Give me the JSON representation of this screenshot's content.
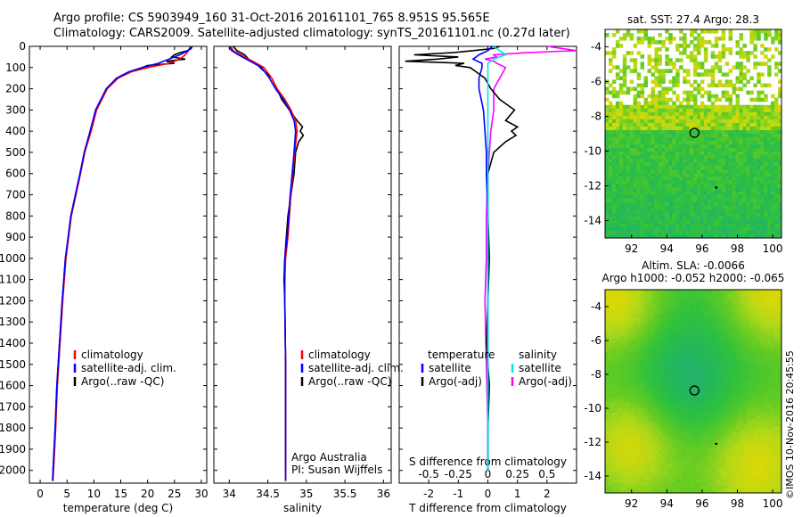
{
  "header": {
    "line1": "Argo profile: CS 5903949_160 31-Oct-2016 20161101_765 8.951S 95.565E",
    "line2": "Climatology: CARS2009. Satellite-adjusted climatology: synTS_20161101.nc (0.27d later)"
  },
  "credit": "©IMOS 10-Nov-2016 20:45:55",
  "colors": {
    "climatology": "#ff0000",
    "satellite": "#0000ff",
    "argo": "#000000",
    "sal_sat": "#00e5e5",
    "sal_argo": "#ff00ff"
  },
  "chart_data": [
    {
      "id": "temperature",
      "type": "line",
      "xlabel": "temperature (deg C)",
      "ylabel": "",
      "xlim": [
        -2,
        31
      ],
      "ylim": [
        2060,
        0
      ],
      "xticks": [
        0,
        5,
        10,
        15,
        20,
        25,
        30
      ],
      "yticks": [
        0,
        100,
        200,
        300,
        400,
        500,
        600,
        700,
        800,
        900,
        1000,
        1100,
        1200,
        1300,
        1400,
        1500,
        1600,
        1700,
        1800,
        1900,
        2000
      ],
      "legend": [
        "climatology",
        "satellite-adj. clim.",
        "Argo(..raw -QC)"
      ],
      "series": [
        {
          "name": "climatology",
          "depth": [
            0,
            20,
            40,
            60,
            80,
            100,
            120,
            150,
            200,
            250,
            300,
            400,
            500,
            600,
            800,
            1000,
            1200,
            1400,
            1600,
            1800,
            2000,
            2050
          ],
          "values": [
            28,
            27.6,
            27,
            26,
            24,
            20,
            17,
            14.5,
            12.5,
            11.5,
            10.5,
            9.5,
            8.3,
            7.5,
            5.8,
            4.8,
            4.2,
            3.7,
            3.2,
            2.9,
            2.5,
            2.4
          ]
        },
        {
          "name": "satellite-adj. clim.",
          "depth": [
            0,
            20,
            40,
            60,
            80,
            100,
            120,
            150,
            200,
            250,
            300,
            400,
            500,
            600,
            800,
            1000,
            1200,
            1400,
            1600,
            1800,
            2000,
            2050
          ],
          "values": [
            28.2,
            27.5,
            26,
            24,
            22,
            19,
            16.5,
            14.2,
            12.3,
            11.3,
            10.3,
            9.3,
            8.2,
            7.4,
            5.7,
            4.7,
            4.1,
            3.6,
            3.1,
            2.8,
            2.4,
            2.3
          ]
        },
        {
          "name": "Argo(..raw -QC)",
          "depth": [
            0,
            10,
            20,
            30,
            40,
            50,
            60,
            70,
            80,
            90,
            100,
            120,
            150,
            200,
            250,
            300,
            400,
            500,
            600,
            800,
            1000,
            1200,
            1400,
            1600,
            1800,
            2000
          ],
          "values": [
            28.3,
            28.1,
            27.5,
            26,
            25,
            24.5,
            27,
            23.5,
            25,
            20,
            19,
            16.8,
            14.5,
            12.4,
            11.4,
            10.4,
            9.4,
            8.3,
            7.5,
            5.8,
            4.7,
            4.1,
            3.6,
            3.1,
            2.8,
            2.4
          ]
        }
      ]
    },
    {
      "id": "salinity",
      "type": "line",
      "xlabel": "salinity",
      "ylabel": "",
      "xlim": [
        33.8,
        36.1
      ],
      "ylim": [
        2060,
        0
      ],
      "xticks": [
        34,
        34.5,
        35,
        35.5,
        36
      ],
      "legend": [
        "climatology",
        "satellite-adj. clim.",
        "Argo(..raw -QC)"
      ],
      "annotation": [
        "Argo Australia",
        "PI: Susan Wijffels"
      ],
      "series": [
        {
          "name": "climatology",
          "depth": [
            0,
            20,
            40,
            60,
            80,
            100,
            150,
            200,
            250,
            300,
            350,
            400,
            500,
            700,
            900,
            1000,
            1100,
            1200,
            1500,
            1800,
            2000,
            2050
          ],
          "values": [
            34.02,
            34.05,
            34.15,
            34.25,
            34.35,
            34.45,
            34.55,
            34.62,
            34.72,
            34.8,
            34.86,
            34.88,
            34.85,
            34.8,
            34.76,
            34.73,
            34.72,
            34.72,
            34.73,
            34.73,
            34.73,
            34.73
          ]
        },
        {
          "name": "satellite-adj. clim.",
          "depth": [
            0,
            20,
            40,
            60,
            80,
            100,
            150,
            200,
            250,
            300,
            350,
            400,
            500,
            700,
            900,
            1000,
            1100,
            1200,
            1500,
            1800,
            2000,
            2050
          ],
          "values": [
            34.0,
            34.03,
            34.12,
            34.22,
            34.32,
            34.42,
            34.52,
            34.6,
            34.7,
            34.78,
            34.84,
            34.86,
            34.84,
            34.79,
            34.75,
            34.72,
            34.72,
            34.72,
            34.73,
            34.73,
            34.73,
            34.73
          ]
        },
        {
          "name": "Argo(..raw -QC)",
          "depth": [
            0,
            20,
            40,
            60,
            80,
            100,
            150,
            200,
            250,
            300,
            350,
            380,
            400,
            420,
            450,
            500,
            600,
            700,
            800,
            900,
            1000,
            1100,
            1200,
            1500,
            1800,
            2000
          ],
          "values": [
            34.05,
            34.1,
            34.2,
            34.25,
            34.35,
            34.4,
            34.55,
            34.62,
            34.68,
            34.78,
            34.88,
            34.95,
            34.92,
            34.96,
            34.9,
            34.86,
            34.84,
            34.8,
            34.76,
            34.74,
            34.72,
            34.71,
            34.72,
            34.73,
            34.73,
            34.73
          ]
        }
      ]
    },
    {
      "id": "difference",
      "type": "line",
      "xlabel": "T difference from climatology",
      "xlabel_top": "S difference from climatology",
      "xlim": [
        -3,
        3
      ],
      "ylim": [
        2060,
        0
      ],
      "xticks": [
        -2,
        -1,
        0,
        1,
        2
      ],
      "xticks_top": [
        "-0.5",
        "-0.25",
        "0",
        "0.25",
        "0.5"
      ],
      "legend_temperature": {
        "title": "temperature",
        "entries": [
          "satellite",
          "Argo(-adj)"
        ]
      },
      "legend_salinity": {
        "title": "salinity",
        "entries": [
          "satellite",
          "Argo(-adj)"
        ]
      },
      "series": [
        {
          "name": "temperature satellite",
          "depth": [
            0,
            20,
            40,
            60,
            80,
            100,
            150,
            200,
            300,
            400,
            500,
            600,
            800,
            1000,
            1500,
            2000
          ],
          "values": [
            0.15,
            0,
            -0.3,
            -0.5,
            -0.2,
            -0.2,
            -0.3,
            -0.3,
            -0.15,
            -0.1,
            -0.05,
            -0.05,
            0,
            0,
            0,
            0
          ]
        },
        {
          "name": "temperature Argo(-adj)",
          "depth": [
            0,
            10,
            20,
            30,
            40,
            50,
            60,
            70,
            80,
            90,
            100,
            120,
            150,
            200,
            250,
            300,
            350,
            380,
            400,
            420,
            450,
            500,
            600,
            700,
            800,
            1000,
            1200,
            1400,
            1500,
            1600,
            1800,
            2000
          ],
          "values": [
            0.4,
            0.2,
            -0.5,
            -1.2,
            -2.5,
            -1,
            -1.7,
            -2.8,
            -0.8,
            -1.1,
            -0.6,
            -0.4,
            -0.1,
            0.1,
            0.4,
            0.9,
            0.6,
            1.0,
            0.8,
            0.95,
            0.6,
            0.2,
            0,
            0,
            0,
            0.05,
            0,
            -0.05,
            0,
            0.05,
            0,
            0
          ]
        },
        {
          "name": "salinity satellite",
          "depth": [
            0,
            20,
            40,
            60,
            80,
            100,
            150,
            200,
            300,
            400,
            500,
            600,
            800,
            1000,
            1500,
            2000
          ],
          "values": [
            0.05,
            0.1,
            0.15,
            0.05,
            0.0,
            0.0,
            0,
            0,
            0,
            0,
            0,
            0,
            0,
            0,
            0,
            0
          ]
        },
        {
          "name": "salinity Argo(-adj)",
          "depth": [
            0,
            20,
            30,
            40,
            50,
            60,
            70,
            80,
            100,
            150,
            200,
            300,
            400,
            500,
            600,
            800,
            1000,
            1200,
            1500,
            1800,
            2000
          ],
          "values": [
            2.0,
            3.0,
            1.3,
            0.2,
            0.3,
            -0.1,
            0.2,
            0.3,
            0.6,
            0.4,
            0.2,
            0.2,
            0.1,
            0.05,
            0.0,
            -0.05,
            -0.05,
            -0.1,
            -0.05,
            0,
            0
          ]
        }
      ]
    },
    {
      "id": "sst-map",
      "type": "heatmap",
      "title": "sat. SST: 27.4 Argo: 28.3",
      "xlim": [
        90.5,
        100.5
      ],
      "ylim": [
        -15,
        -3
      ],
      "xticks": [
        92,
        94,
        96,
        98,
        100
      ],
      "yticks": [
        -4,
        -6,
        -8,
        -10,
        -12,
        -14
      ],
      "marker": {
        "lon": 95.565,
        "lat": -8.951
      }
    },
    {
      "id": "sla-map",
      "type": "heatmap",
      "title": "Altim. SLA: -0.0066",
      "subtitle": "Argo h1000: -0.052 h2000: -0.065",
      "xlim": [
        90.5,
        100.5
      ],
      "ylim": [
        -15,
        -3
      ],
      "xticks": [
        92,
        94,
        96,
        98,
        100
      ],
      "yticks": [
        -4,
        -6,
        -8,
        -10,
        -12,
        -14
      ],
      "marker": {
        "lon": 95.565,
        "lat": -8.951
      }
    }
  ]
}
